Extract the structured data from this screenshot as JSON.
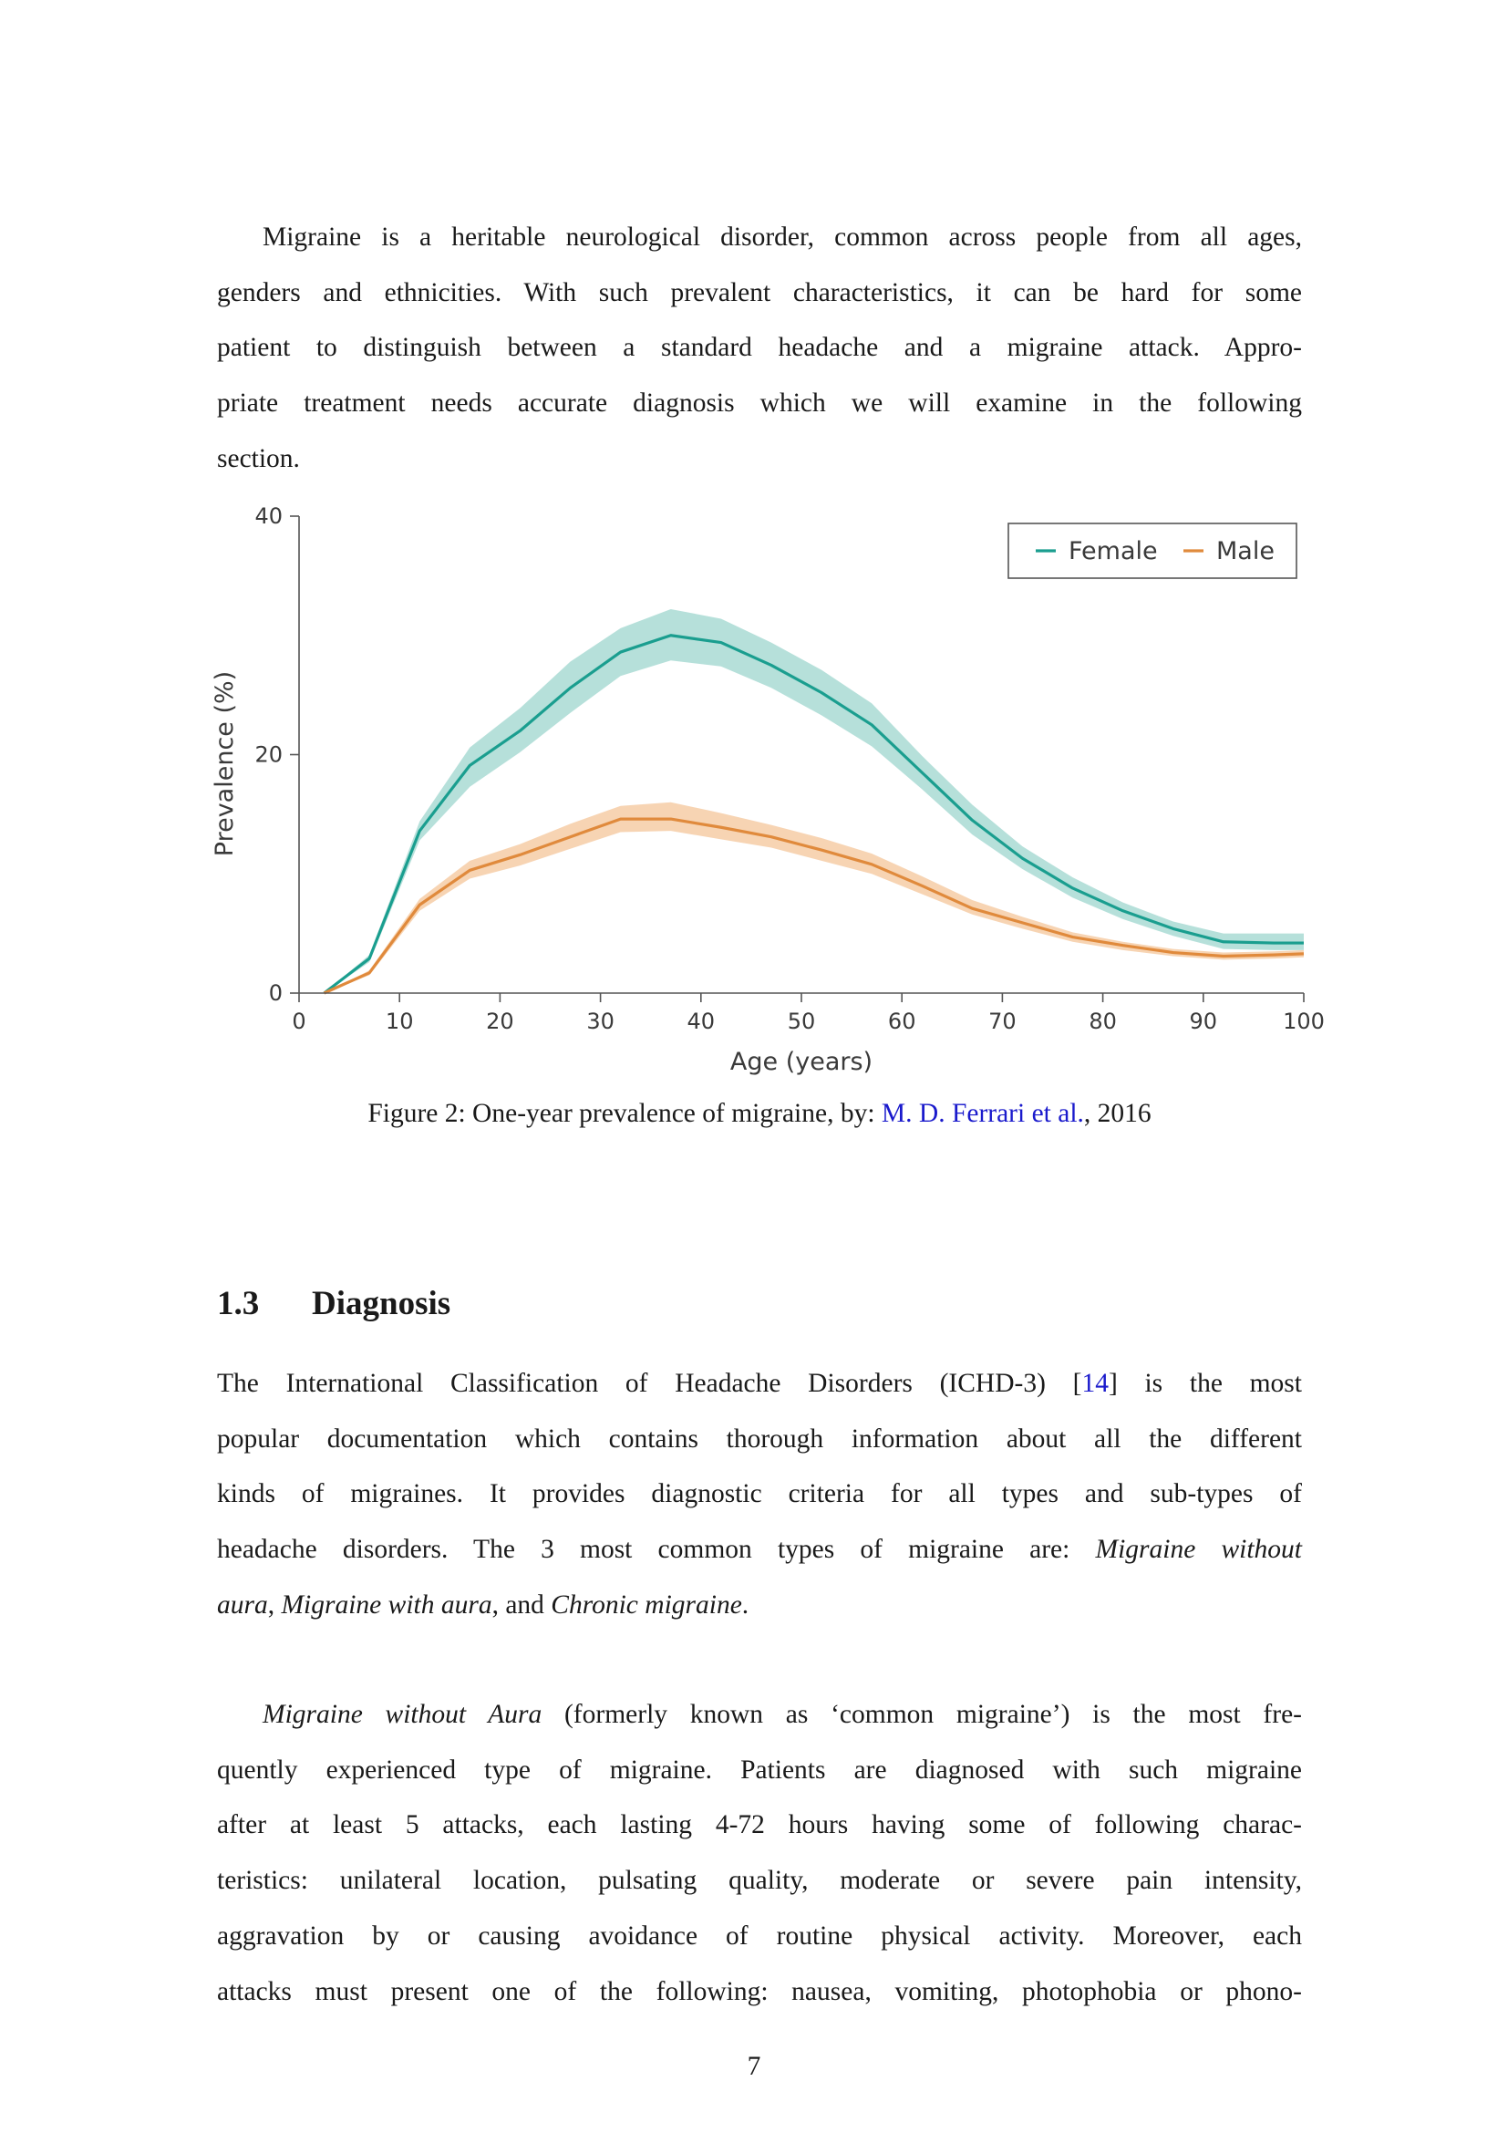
{
  "intro": {
    "lines": [
      "Migraine is a heritable neurological disorder, common across people from all ages,",
      "genders and ethnicities. With such prevalent characteristics, it can be hard for some",
      "patient to distinguish between a standard headache and a migraine attack. Appro-",
      "priate treatment needs accurate diagnosis which we will examine in the following",
      "section."
    ]
  },
  "figure": {
    "caption_prefix": "Figure 2: One-year prevalence of migraine, by: ",
    "caption_link": "M. D. Ferrari et al.",
    "caption_suffix": ", 2016",
    "colors": {
      "female": "#1a9e8f",
      "male": "#e08a3c",
      "female_band": "#a9dbd3",
      "male_band": "#f6cda6",
      "axis": "#555555"
    }
  },
  "chart_data": {
    "type": "line",
    "xlabel": "Age (years)",
    "ylabel": "Prevalence (%)",
    "xlim": [
      0,
      100
    ],
    "ylim": [
      0,
      40
    ],
    "xticks": [
      0,
      10,
      20,
      30,
      40,
      50,
      60,
      70,
      80,
      90,
      100
    ],
    "yticks": [
      0,
      20,
      40
    ],
    "legend_position": "top-right",
    "x": [
      2.5,
      7,
      12,
      17,
      22,
      27,
      32,
      37,
      42,
      47,
      52,
      57,
      62,
      67,
      72,
      77,
      82,
      87,
      92,
      97,
      100
    ],
    "series": [
      {
        "name": "Female",
        "values": [
          0,
          2.9,
          13.6,
          19.1,
          22.0,
          25.6,
          28.6,
          30.0,
          29.4,
          27.5,
          25.2,
          22.5,
          18.5,
          14.5,
          11.3,
          8.8,
          6.9,
          5.4,
          4.3,
          4.2,
          4.2
        ],
        "lower": [
          0,
          2.6,
          12.8,
          17.3,
          20.2,
          23.5,
          26.6,
          27.9,
          27.4,
          25.6,
          23.3,
          20.7,
          17.1,
          13.3,
          10.4,
          8.0,
          6.2,
          4.8,
          3.7,
          3.6,
          3.6
        ],
        "upper": [
          0,
          3.2,
          14.4,
          20.6,
          23.9,
          27.8,
          30.6,
          32.2,
          31.4,
          29.4,
          27.1,
          24.3,
          19.9,
          15.8,
          12.3,
          9.7,
          7.6,
          6.0,
          5.0,
          5.0,
          5.0
        ]
      },
      {
        "name": "Male",
        "values": [
          0,
          1.7,
          7.4,
          10.3,
          11.6,
          13.1,
          14.6,
          14.6,
          13.9,
          13.1,
          12.0,
          10.8,
          9.0,
          7.1,
          5.9,
          4.7,
          4.0,
          3.4,
          3.1,
          3.2,
          3.3
        ],
        "lower": [
          0,
          1.5,
          6.9,
          9.6,
          10.7,
          12.1,
          13.5,
          13.6,
          12.9,
          12.2,
          11.1,
          10.0,
          8.3,
          6.6,
          5.4,
          4.3,
          3.6,
          3.1,
          2.8,
          2.9,
          3.0
        ],
        "upper": [
          0,
          1.9,
          7.9,
          11.1,
          12.5,
          14.2,
          15.7,
          16.0,
          15.1,
          14.1,
          13.0,
          11.7,
          9.8,
          7.8,
          6.4,
          5.1,
          4.3,
          3.7,
          3.4,
          3.5,
          3.6
        ]
      }
    ]
  },
  "section": {
    "number": "1.3",
    "title": "Diagnosis"
  },
  "para2": {
    "l1_a": "The International Classification of Headache Disorders (ICHD-3) [",
    "l1_ref": "14",
    "l1_b": "] is the most",
    "l2": "popular documentation which contains thorough information about all the different",
    "l3": "kinds of migraines. It provides diagnostic criteria for all types and sub-types of",
    "l4_a": "headache disorders. The 3 most common types of migraine are: ",
    "l4_em": "Migraine without",
    "l5_em1": "aura",
    "l5_a": ", ",
    "l5_em2": "Migraine with aura",
    "l5_b": ", and ",
    "l5_em3": "Chronic migraine",
    "l5_c": "."
  },
  "para3": {
    "l1_em": "Migraine without Aura",
    "l1_a": " (formerly known as ‘common migraine’) is the most fre-",
    "l2": "quently experienced type of migraine. Patients are diagnosed with such migraine",
    "l3": "after at least 5 attacks, each lasting 4-72 hours having some of following charac-",
    "l4": "teristics: unilateral location, pulsating quality, moderate or severe pain intensity,",
    "l5": "aggravation by or causing avoidance of routine physical activity. Moreover, each",
    "l6": "attacks must present one of the following: nausea, vomiting, photophobia or phono-"
  },
  "page_number": "7"
}
